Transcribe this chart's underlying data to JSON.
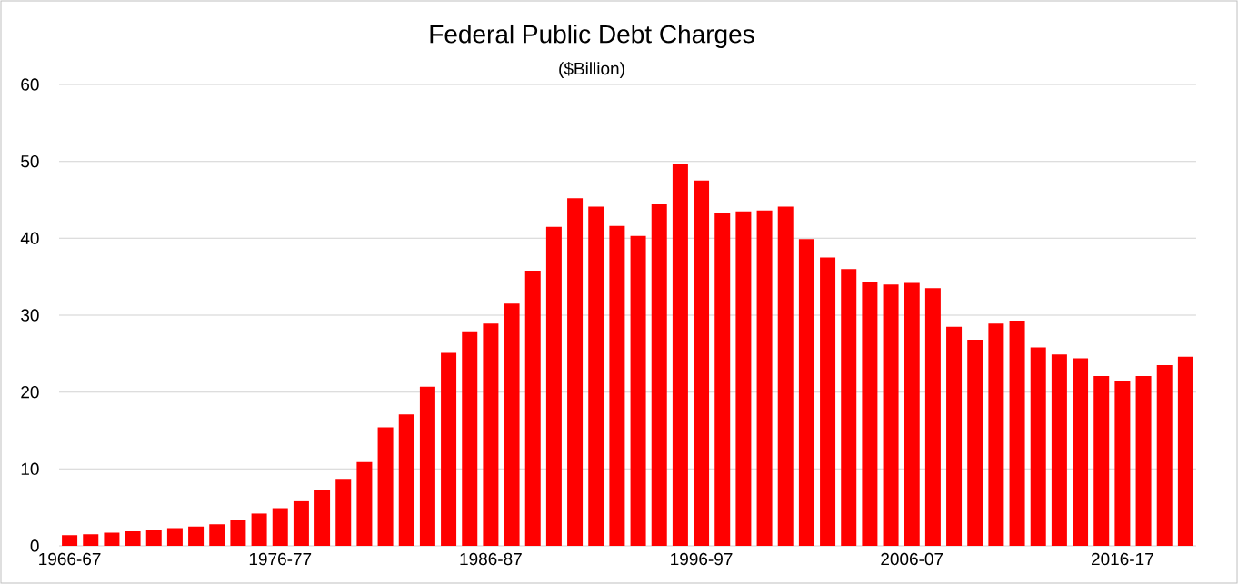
{
  "chart_data": {
    "type": "bar",
    "title": "Federal Public Debt Charges",
    "subtitle": "($Billion)",
    "categories": [
      "1966-67",
      null,
      null,
      null,
      null,
      null,
      null,
      null,
      null,
      null,
      "1976-77",
      null,
      null,
      null,
      null,
      null,
      null,
      null,
      null,
      null,
      "1986-87",
      null,
      null,
      null,
      null,
      null,
      null,
      null,
      null,
      null,
      "1996-97",
      null,
      null,
      null,
      null,
      null,
      null,
      null,
      null,
      null,
      "2006-07",
      null,
      null,
      null,
      null,
      null,
      null,
      null,
      null,
      null,
      "2016-17",
      null,
      null,
      null
    ],
    "values": [
      1.4,
      1.5,
      1.7,
      1.9,
      2.1,
      2.3,
      2.5,
      2.8,
      3.4,
      4.2,
      4.9,
      5.8,
      7.3,
      8.7,
      10.9,
      15.4,
      17.1,
      20.7,
      25.1,
      27.9,
      28.9,
      31.5,
      35.8,
      41.5,
      45.2,
      44.1,
      41.6,
      40.3,
      44.4,
      49.6,
      47.5,
      43.3,
      43.5,
      43.6,
      44.1,
      39.9,
      37.5,
      36.0,
      34.3,
      34.0,
      34.2,
      33.5,
      28.5,
      26.8,
      28.9,
      29.3,
      25.8,
      24.9,
      24.4,
      22.1,
      21.5,
      22.1,
      23.5,
      24.6
    ],
    "color": "#ff0000",
    "ylim": [
      0,
      60
    ],
    "yticks": [
      0,
      10,
      20,
      30,
      40,
      50,
      60
    ],
    "grid": "y"
  }
}
